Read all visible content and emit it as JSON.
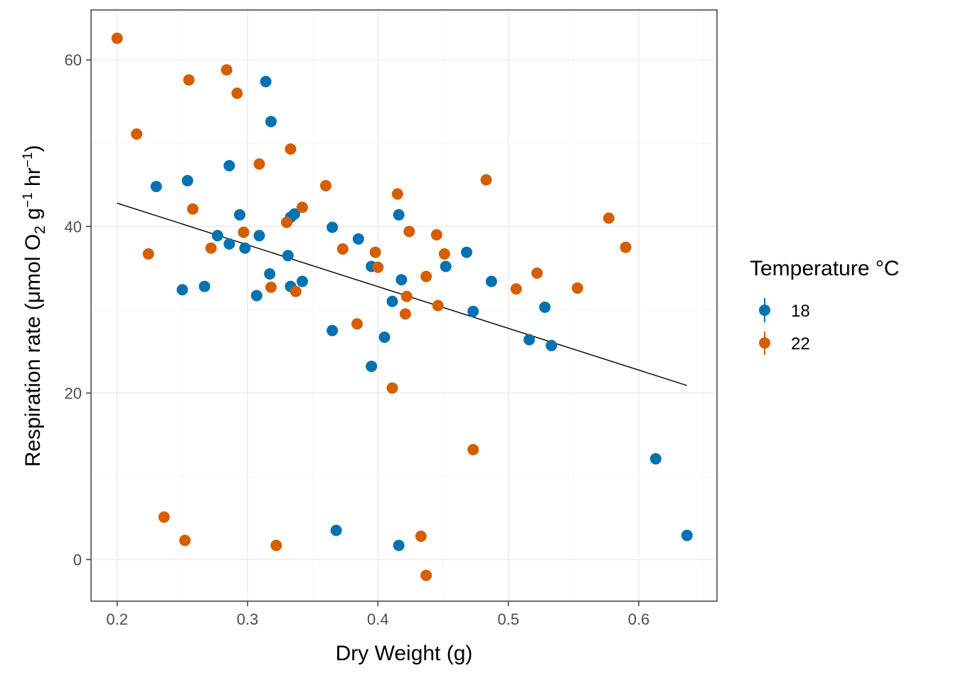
{
  "chart_data": {
    "type": "scatter",
    "xlabel": "Dry Weight (g)",
    "ylabel_parts": [
      "Respiration rate (",
      "μmol O",
      "2",
      " g",
      "−1",
      " hr",
      "−1",
      ")"
    ],
    "xlim": [
      0.18,
      0.66
    ],
    "ylim": [
      -5,
      66
    ],
    "x_ticks": [
      0.2,
      0.3,
      0.4,
      0.5,
      0.6
    ],
    "x_tick_labels": [
      "0.2",
      "0.3",
      "0.4",
      "0.5",
      "0.6"
    ],
    "y_ticks": [
      0,
      20,
      40,
      60
    ],
    "y_tick_labels": [
      "0",
      "20",
      "40",
      "60"
    ],
    "grid": true,
    "legend": {
      "title": "Temperature °C",
      "position": "right",
      "entries": [
        "18",
        "22"
      ]
    },
    "series": [
      {
        "name": "18",
        "color": "#0072B2",
        "points": [
          [
            0.23,
            44.8
          ],
          [
            0.25,
            32.4
          ],
          [
            0.254,
            45.5
          ],
          [
            0.267,
            32.8
          ],
          [
            0.277,
            38.9
          ],
          [
            0.286,
            47.3
          ],
          [
            0.286,
            37.9
          ],
          [
            0.294,
            41.4
          ],
          [
            0.298,
            37.4
          ],
          [
            0.307,
            31.7
          ],
          [
            0.309,
            38.9
          ],
          [
            0.314,
            57.4
          ],
          [
            0.317,
            34.3
          ],
          [
            0.318,
            52.6
          ],
          [
            0.331,
            36.5
          ],
          [
            0.333,
            32.8
          ],
          [
            0.333,
            41.1
          ],
          [
            0.336,
            41.5
          ],
          [
            0.342,
            33.4
          ],
          [
            0.365,
            39.9
          ],
          [
            0.365,
            27.5
          ],
          [
            0.368,
            3.5
          ],
          [
            0.385,
            38.5
          ],
          [
            0.395,
            35.2
          ],
          [
            0.395,
            23.2
          ],
          [
            0.405,
            26.7
          ],
          [
            0.411,
            31.0
          ],
          [
            0.416,
            41.4
          ],
          [
            0.416,
            1.7
          ],
          [
            0.418,
            33.6
          ],
          [
            0.452,
            35.2
          ],
          [
            0.468,
            36.9
          ],
          [
            0.473,
            29.8
          ],
          [
            0.487,
            33.4
          ],
          [
            0.516,
            26.4
          ],
          [
            0.528,
            30.3
          ],
          [
            0.533,
            25.7
          ],
          [
            0.613,
            12.1
          ],
          [
            0.637,
            2.9
          ]
        ]
      },
      {
        "name": "22",
        "color": "#D55E00",
        "points": [
          [
            0.2,
            62.6
          ],
          [
            0.215,
            51.1
          ],
          [
            0.224,
            36.7
          ],
          [
            0.236,
            5.1
          ],
          [
            0.252,
            2.3
          ],
          [
            0.255,
            57.6
          ],
          [
            0.258,
            42.1
          ],
          [
            0.272,
            37.4
          ],
          [
            0.284,
            58.8
          ],
          [
            0.292,
            56.0
          ],
          [
            0.297,
            39.3
          ],
          [
            0.309,
            47.5
          ],
          [
            0.318,
            32.7
          ],
          [
            0.322,
            1.7
          ],
          [
            0.33,
            40.5
          ],
          [
            0.333,
            49.3
          ],
          [
            0.337,
            32.2
          ],
          [
            0.342,
            42.3
          ],
          [
            0.36,
            44.9
          ],
          [
            0.373,
            37.3
          ],
          [
            0.384,
            28.3
          ],
          [
            0.398,
            36.9
          ],
          [
            0.4,
            35.1
          ],
          [
            0.411,
            20.6
          ],
          [
            0.415,
            43.9
          ],
          [
            0.421,
            29.5
          ],
          [
            0.422,
            31.6
          ],
          [
            0.424,
            39.4
          ],
          [
            0.433,
            2.8
          ],
          [
            0.437,
            34.0
          ],
          [
            0.437,
            -1.9
          ],
          [
            0.445,
            39.0
          ],
          [
            0.446,
            30.5
          ],
          [
            0.451,
            36.7
          ],
          [
            0.473,
            13.2
          ],
          [
            0.483,
            45.6
          ],
          [
            0.506,
            32.5
          ],
          [
            0.522,
            34.4
          ],
          [
            0.553,
            32.6
          ],
          [
            0.577,
            41.0
          ],
          [
            0.59,
            37.5
          ]
        ]
      }
    ],
    "trendline": {
      "color": "#000000",
      "x": [
        0.2,
        0.637
      ],
      "y": [
        42.8,
        20.9
      ]
    }
  }
}
